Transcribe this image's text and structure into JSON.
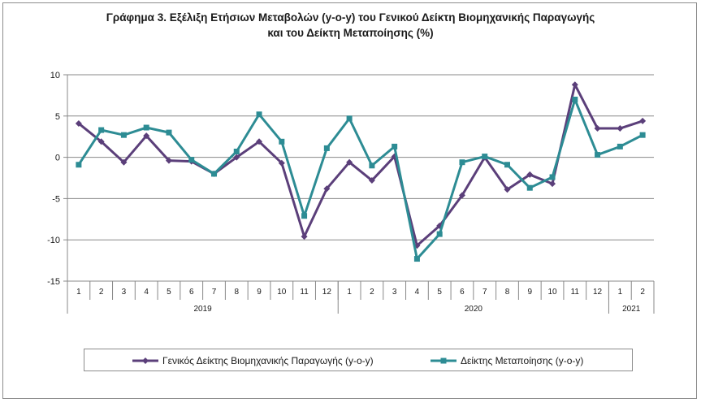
{
  "chart_data": {
    "type": "line",
    "title_line1": "Γράφημα 3. Εξέλιξη Ετήσιων Μεταβολών (y-o-y) του Γενικού Δείκτη Βιομηχανικής Παραγωγής",
    "title_line2": "και του Δείκτη Μεταποίησης (%)",
    "x": [
      "1",
      "2",
      "3",
      "4",
      "5",
      "6",
      "7",
      "8",
      "9",
      "10",
      "11",
      "12",
      "1",
      "2",
      "3",
      "4",
      "5",
      "6",
      "7",
      "8",
      "9",
      "10",
      "11",
      "12",
      "1",
      "2"
    ],
    "year_groups": [
      {
        "label": "2019",
        "start": 0,
        "count": 12
      },
      {
        "label": "2020",
        "start": 12,
        "count": 12
      },
      {
        "label": "2021",
        "start": 24,
        "count": 2
      }
    ],
    "ylim": [
      -15,
      10
    ],
    "yticks": [
      10,
      5,
      0,
      -5,
      -10,
      -15
    ],
    "grid": true,
    "legend_position": "bottom",
    "series": [
      {
        "name": "Γενικός Δείκτης Βιομηχανικής Παραγωγής (y-o-y)",
        "color": "#5b3f7a",
        "marker": "diamond",
        "values": [
          4.1,
          1.9,
          -0.6,
          2.6,
          -0.4,
          -0.5,
          -2.0,
          0.0,
          1.9,
          -0.7,
          -9.6,
          -3.8,
          -0.6,
          -2.8,
          0.1,
          -10.7,
          -8.3,
          -4.6,
          0.0,
          -3.9,
          -2.1,
          -3.2,
          8.8,
          3.5,
          3.5,
          4.4
        ]
      },
      {
        "name": "Δείκτης Μεταποίησης (y-o-y)",
        "color": "#2d8c94",
        "marker": "square",
        "values": [
          -0.9,
          3.3,
          2.7,
          3.6,
          3.0,
          -0.3,
          -2.0,
          0.7,
          5.2,
          1.9,
          -7.1,
          1.1,
          4.7,
          -1.0,
          1.3,
          -12.3,
          -9.3,
          -0.6,
          0.1,
          -0.9,
          -3.7,
          -2.4,
          7.0,
          0.3,
          1.3,
          2.7
        ]
      }
    ]
  }
}
